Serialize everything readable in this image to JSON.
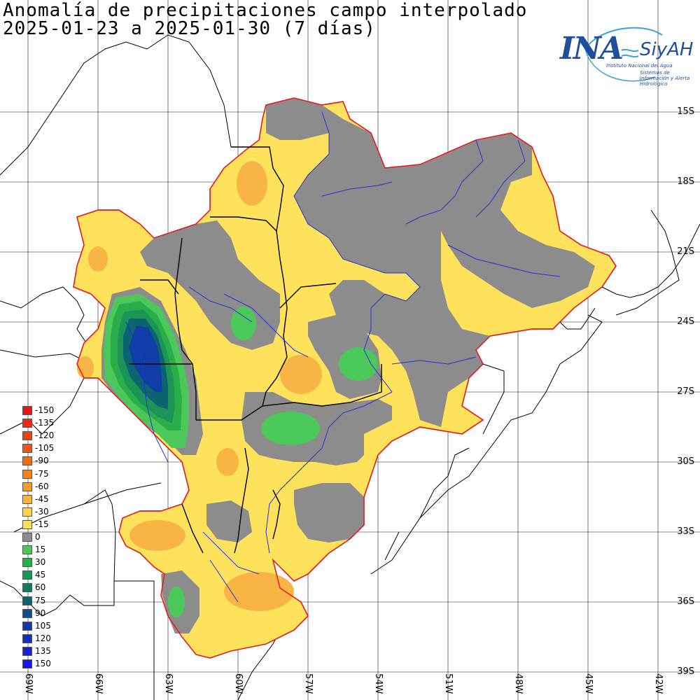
{
  "title": {
    "line1": "Anomalía de precipitaciones campo interpolado",
    "line2": "2025-01-23 a 2025-01-30 (7 días)"
  },
  "logo": {
    "brand": "INA",
    "system": "SiyAH",
    "subtitle1": "Instituto Nacional del Agua",
    "subtitle2": "Sistemas de Información y Alerta Hidrológico"
  },
  "lat_labels": [
    "15S",
    "18S",
    "21S",
    "24S",
    "27S",
    "30S",
    "33S",
    "36S",
    "39S"
  ],
  "lon_labels": [
    "69W",
    "66W",
    "63W",
    "60W",
    "57W",
    "54W",
    "51W",
    "48W",
    "45W",
    "42W"
  ],
  "legend": [
    {
      "value": "-150",
      "color": "#e8141c"
    },
    {
      "value": "-135",
      "color": "#ec2a1a"
    },
    {
      "value": "-120",
      "color": "#ef3f18"
    },
    {
      "value": "-105",
      "color": "#f25516"
    },
    {
      "value": "-90",
      "color": "#f46a14"
    },
    {
      "value": "-75",
      "color": "#f58222"
    },
    {
      "value": "-60",
      "color": "#f69a35"
    },
    {
      "value": "-45",
      "color": "#f8b545"
    },
    {
      "value": "-30",
      "color": "#fbd254"
    },
    {
      "value": "-15",
      "color": "#ffe25c"
    },
    {
      "value": "0",
      "color": "#8c8c8c"
    },
    {
      "value": "15",
      "color": "#4cc85a"
    },
    {
      "value": "30",
      "color": "#2aae4a"
    },
    {
      "value": "45",
      "color": "#1a9556"
    },
    {
      "value": "60",
      "color": "#117a62"
    },
    {
      "value": "75",
      "color": "#0c6470"
    },
    {
      "value": "90",
      "color": "#0d4f8a"
    },
    {
      "value": "105",
      "color": "#0f3fa6"
    },
    {
      "value": "120",
      "color": "#1030c0"
    },
    {
      "value": "135",
      "color": "#1224d6"
    },
    {
      "value": "150",
      "color": "#1518ec"
    }
  ]
}
